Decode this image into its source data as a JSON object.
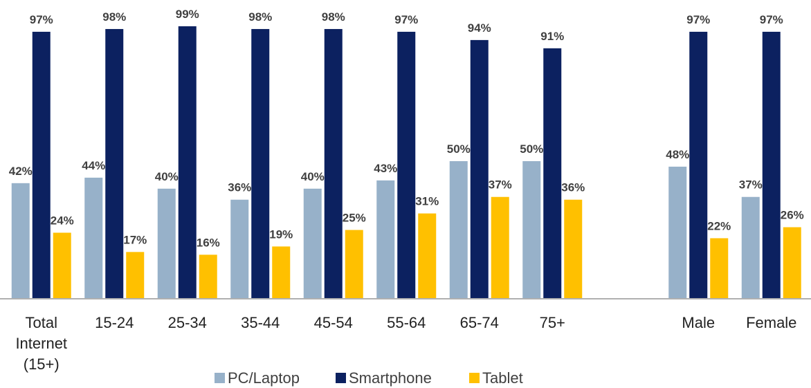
{
  "chart_data": {
    "type": "bar",
    "categories": [
      "Total Internet (15+)",
      "15-24",
      "25-34",
      "35-44",
      "45-54",
      "55-64",
      "65-74",
      "75+",
      null,
      "Male",
      "Female"
    ],
    "series": [
      {
        "name": "PC/Laptop",
        "color": "#97b1c9",
        "values": [
          42,
          44,
          40,
          36,
          40,
          43,
          50,
          50,
          null,
          48,
          37
        ],
        "value_labels": [
          "42%",
          "44%",
          "40%",
          "36%",
          "40%",
          "43%",
          "50%",
          "50%",
          null,
          "48%",
          "37%"
        ]
      },
      {
        "name": "Smartphone",
        "color": "#0c2160",
        "values": [
          97,
          98,
          99,
          98,
          98,
          97,
          94,
          91,
          null,
          97,
          97
        ],
        "value_labels": [
          "97%",
          "98%",
          "99%",
          "98%",
          "98%",
          "97%",
          "94%",
          "91%",
          null,
          "97%",
          "97%"
        ]
      },
      {
        "name": "Tablet",
        "color": "#ffc000",
        "values": [
          24,
          17,
          16,
          19,
          25,
          31,
          37,
          36,
          null,
          22,
          26
        ],
        "value_labels": [
          "24%",
          "17%",
          "16%",
          "19%",
          "25%",
          "31%",
          "37%",
          "36%",
          null,
          "22%",
          "26%"
        ]
      }
    ],
    "ylim": [
      0,
      100
    ],
    "legend": "bottom"
  }
}
